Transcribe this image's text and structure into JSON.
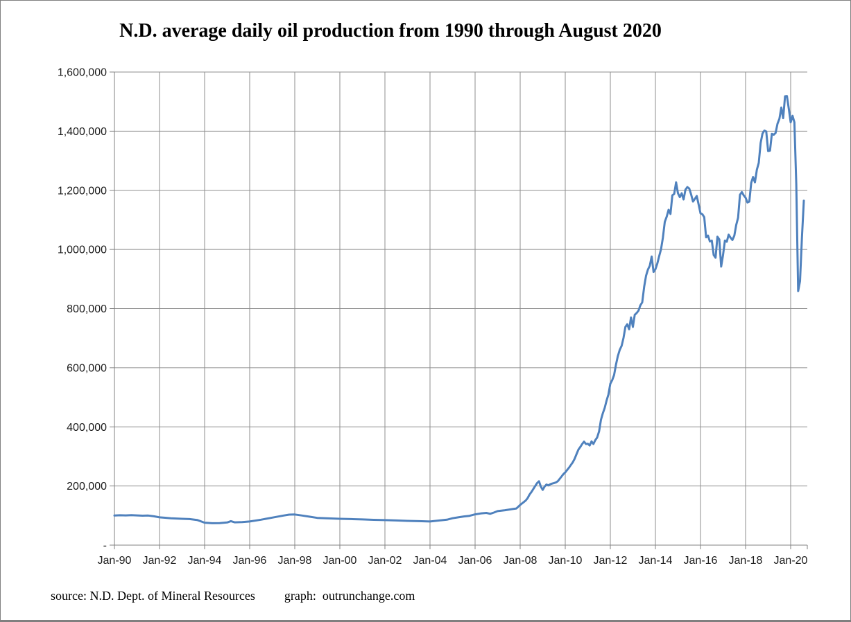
{
  "chart_data": {
    "type": "line",
    "title": "N.D. average daily oil production from 1990 through August 2020",
    "xlabel": "",
    "ylabel": "",
    "ylim": [
      0,
      1600000
    ],
    "y_tick_interval": 200000,
    "y_tick_labels": [
      "1,600,000",
      "1,400,000",
      "1,200,000",
      "1,000,000",
      "800,000",
      "600,000",
      "400,000",
      "200,000",
      "-"
    ],
    "x_tick_labels": [
      "Jan-90",
      "Jan-92",
      "Jan-94",
      "Jan-96",
      "Jan-98",
      "Jan-00",
      "Jan-02",
      "Jan-04",
      "Jan-06",
      "Jan-08",
      "Jan-10",
      "Jan-12",
      "Jan-14",
      "Jan-16",
      "Jan-18",
      "Jan-20"
    ],
    "x_tick_interval_months": 24,
    "x_range_months": [
      0,
      369
    ],
    "x_start_label": "Jan-1990",
    "x_end_label": "Aug-2020",
    "grid": true,
    "legend": "none",
    "line_color": "#4F81BD",
    "grid_color": "#8e8e8e",
    "axis_color": "#808080",
    "tick_label_color": "#1a1a1a",
    "series": [
      {
        "points": [
          [
            0,
            100000
          ],
          [
            3,
            101000
          ],
          [
            6,
            100500
          ],
          [
            9,
            101500
          ],
          [
            12,
            100500
          ],
          [
            15,
            99500
          ],
          [
            18,
            100000
          ],
          [
            21,
            97500
          ],
          [
            24,
            94000
          ],
          [
            27,
            92500
          ],
          [
            30,
            91000
          ],
          [
            33,
            90000
          ],
          [
            36,
            89000
          ],
          [
            40,
            88000
          ],
          [
            44,
            85000
          ],
          [
            48,
            76000
          ],
          [
            52,
            74000
          ],
          [
            56,
            74500
          ],
          [
            60,
            76500
          ],
          [
            62,
            81000
          ],
          [
            64,
            77000
          ],
          [
            68,
            78000
          ],
          [
            72,
            80000
          ],
          [
            78,
            86000
          ],
          [
            84,
            93000
          ],
          [
            90,
            100000
          ],
          [
            93,
            103000
          ],
          [
            96,
            103500
          ],
          [
            100,
            100000
          ],
          [
            104,
            96000
          ],
          [
            108,
            92000
          ],
          [
            114,
            90500
          ],
          [
            120,
            89000
          ],
          [
            126,
            88000
          ],
          [
            132,
            87000
          ],
          [
            138,
            85500
          ],
          [
            144,
            84500
          ],
          [
            150,
            83500
          ],
          [
            156,
            82000
          ],
          [
            162,
            81000
          ],
          [
            168,
            80000
          ],
          [
            171,
            82000
          ],
          [
            174,
            84000
          ],
          [
            177,
            86000
          ],
          [
            180,
            91000
          ],
          [
            183,
            94000
          ],
          [
            186,
            97000
          ],
          [
            189,
            99000
          ],
          [
            192,
            104000
          ],
          [
            195,
            107000
          ],
          [
            198,
            109000
          ],
          [
            200,
            106000
          ],
          [
            202,
            110000
          ],
          [
            204,
            115000
          ],
          [
            208,
            118000
          ],
          [
            212,
            122000
          ],
          [
            214,
            124000
          ],
          [
            216,
            136000
          ],
          [
            217,
            141000
          ],
          [
            218,
            146000
          ],
          [
            219,
            151000
          ],
          [
            220,
            159000
          ],
          [
            221,
            171000
          ],
          [
            222,
            180000
          ],
          [
            223,
            190000
          ],
          [
            224,
            200000
          ],
          [
            225,
            210000
          ],
          [
            226,
            216000
          ],
          [
            227,
            198000
          ],
          [
            228,
            187000
          ],
          [
            229,
            198000
          ],
          [
            230,
            205000
          ],
          [
            231,
            202000
          ],
          [
            232,
            206000
          ],
          [
            233,
            208000
          ],
          [
            234,
            210000
          ],
          [
            235,
            212000
          ],
          [
            236,
            216000
          ],
          [
            237,
            224000
          ],
          [
            238,
            232000
          ],
          [
            239,
            240000
          ],
          [
            240,
            246000
          ],
          [
            241,
            254000
          ],
          [
            242,
            262000
          ],
          [
            243,
            271000
          ],
          [
            244,
            280000
          ],
          [
            245,
            292000
          ],
          [
            246,
            308000
          ],
          [
            247,
            323000
          ],
          [
            248,
            332000
          ],
          [
            249,
            342000
          ],
          [
            250,
            350000
          ],
          [
            251,
            342000
          ],
          [
            252,
            343000
          ],
          [
            253,
            337000
          ],
          [
            254,
            351000
          ],
          [
            255,
            342000
          ],
          [
            256,
            355000
          ],
          [
            257,
            364000
          ],
          [
            258,
            385000
          ],
          [
            259,
            424000
          ],
          [
            260,
            446000
          ],
          [
            261,
            464000
          ],
          [
            262,
            489000
          ],
          [
            263,
            510000
          ],
          [
            264,
            546000
          ],
          [
            265,
            558000
          ],
          [
            266,
            575000
          ],
          [
            267,
            610000
          ],
          [
            268,
            639000
          ],
          [
            269,
            660000
          ],
          [
            270,
            674000
          ],
          [
            271,
            701000
          ],
          [
            272,
            738000
          ],
          [
            273,
            747000
          ],
          [
            274,
            730000
          ],
          [
            275,
            770000
          ],
          [
            276,
            738000
          ],
          [
            277,
            779000
          ],
          [
            278,
            785000
          ],
          [
            279,
            793000
          ],
          [
            280,
            811000
          ],
          [
            281,
            821000
          ],
          [
            282,
            874000
          ],
          [
            283,
            911000
          ],
          [
            284,
            932000
          ],
          [
            285,
            945000
          ],
          [
            286,
            976000
          ],
          [
            287,
            924000
          ],
          [
            288,
            933000
          ],
          [
            289,
            952000
          ],
          [
            290,
            977000
          ],
          [
            291,
            1001000
          ],
          [
            292,
            1040000
          ],
          [
            293,
            1093000
          ],
          [
            294,
            1111000
          ],
          [
            295,
            1134000
          ],
          [
            296,
            1120000
          ],
          [
            297,
            1183000
          ],
          [
            298,
            1188000
          ],
          [
            299,
            1227000
          ],
          [
            300,
            1190000
          ],
          [
            301,
            1177000
          ],
          [
            302,
            1190000
          ],
          [
            303,
            1169000
          ],
          [
            304,
            1202000
          ],
          [
            305,
            1211000
          ],
          [
            306,
            1206000
          ],
          [
            307,
            1186000
          ],
          [
            308,
            1162000
          ],
          [
            309,
            1171000
          ],
          [
            310,
            1181000
          ],
          [
            311,
            1152000
          ],
          [
            312,
            1122000
          ],
          [
            313,
            1119000
          ],
          [
            314,
            1109000
          ],
          [
            315,
            1041000
          ],
          [
            316,
            1047000
          ],
          [
            317,
            1027000
          ],
          [
            318,
            1030000
          ],
          [
            319,
            981000
          ],
          [
            320,
            972000
          ],
          [
            321,
            1043000
          ],
          [
            322,
            1034000
          ],
          [
            323,
            942000
          ],
          [
            324,
            981000
          ],
          [
            325,
            1030000
          ],
          [
            326,
            1026000
          ],
          [
            327,
            1050000
          ],
          [
            328,
            1040000
          ],
          [
            329,
            1032000
          ],
          [
            330,
            1047000
          ],
          [
            331,
            1083000
          ],
          [
            332,
            1107000
          ],
          [
            333,
            1185000
          ],
          [
            334,
            1194000
          ],
          [
            335,
            1183000
          ],
          [
            336,
            1175000
          ],
          [
            337,
            1159000
          ],
          [
            338,
            1162000
          ],
          [
            339,
            1225000
          ],
          [
            340,
            1245000
          ],
          [
            341,
            1227000
          ],
          [
            342,
            1270000
          ],
          [
            343,
            1293000
          ],
          [
            344,
            1360000
          ],
          [
            345,
            1392000
          ],
          [
            346,
            1402000
          ],
          [
            347,
            1399000
          ],
          [
            348,
            1333000
          ],
          [
            349,
            1334000
          ],
          [
            350,
            1391000
          ],
          [
            351,
            1388000
          ],
          [
            352,
            1394000
          ],
          [
            353,
            1425000
          ],
          [
            354,
            1442000
          ],
          [
            355,
            1480000
          ],
          [
            356,
            1444000
          ],
          [
            357,
            1518000
          ],
          [
            358,
            1519000
          ],
          [
            359,
            1476000
          ],
          [
            360,
            1430000
          ],
          [
            361,
            1452000
          ],
          [
            362,
            1430000
          ],
          [
            363,
            1221000
          ],
          [
            364,
            859000
          ],
          [
            365,
            893000
          ],
          [
            366,
            1042000
          ],
          [
            367,
            1165000
          ]
        ]
      }
    ]
  },
  "footer": {
    "source_label": "source: N.D. Dept. of Mineral Resources",
    "graph_label": "graph:  outrunchange.com"
  }
}
